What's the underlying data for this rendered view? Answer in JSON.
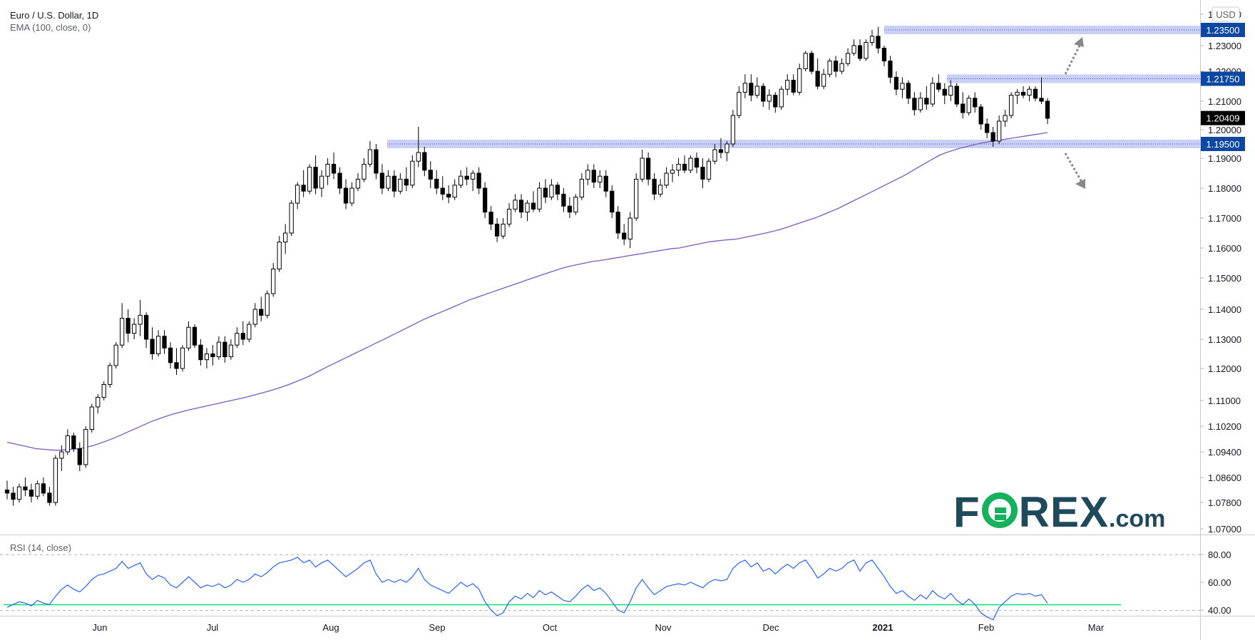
{
  "header": {
    "symbol_title": "Euro / U.S. Dollar, 1D",
    "indicator_label": "EMA (100, close, 0)",
    "currency_label": "USD"
  },
  "rsi_panel": {
    "label": "RSI (14, close)",
    "axis_labels": [
      "80.00",
      "60.00",
      "40.00"
    ]
  },
  "logo": {
    "text_left": "F",
    "text_o": "O",
    "text_right": "REX",
    "text_suffix": ".com"
  },
  "colors": {
    "candle_up_body": "#ffffff",
    "candle_down_body": "#000000",
    "ema_line": "#7e57c2",
    "zone_fill": "#9fa8f0",
    "rsi_line": "#2962ff",
    "rsi_green_line": "#00e676",
    "label_box": "#0d47a1",
    "price_box": "#000000",
    "logo_text": "#1f4a5c",
    "logo_green": "#16b15d"
  },
  "chart_data": {
    "type": "candlestick",
    "title": "Euro / U.S. Dollar, 1D",
    "ylim": [
      1.07,
      1.24
    ],
    "y_ticks": [
      "1.07000",
      "1.07800",
      "1.08600",
      "1.09400",
      "1.10200",
      "1.11000",
      "1.12000",
      "1.13000",
      "1.14000",
      "1.15000",
      "1.16000",
      "1.17000",
      "1.18000",
      "1.19000",
      "1.20000",
      "1.21000",
      "1.22000",
      "1.23000",
      "1.24000"
    ],
    "x_ticks": [
      "Jun",
      "Jul",
      "Aug",
      "Sep",
      "Oct",
      "Nov",
      "Dec",
      "2021",
      "Feb",
      "Mar"
    ],
    "current_price": "1.20409",
    "levels": [
      {
        "label": "1.23500",
        "value": 1.235
      },
      {
        "label": "1.21750",
        "value": 1.2175
      },
      {
        "label": "1.19500",
        "value": 1.195
      }
    ],
    "candles": [
      [
        1.082,
        1.085,
        1.079,
        1.081
      ],
      [
        1.081,
        1.083,
        1.077,
        1.079
      ],
      [
        1.079,
        1.084,
        1.078,
        1.083
      ],
      [
        1.083,
        1.086,
        1.08,
        1.082
      ],
      [
        1.082,
        1.084,
        1.078,
        1.08
      ],
      [
        1.08,
        1.085,
        1.079,
        1.084
      ],
      [
        1.084,
        1.086,
        1.08,
        1.081
      ],
      [
        1.081,
        1.083,
        1.077,
        1.078
      ],
      [
        1.078,
        1.093,
        1.077,
        1.092
      ],
      [
        1.092,
        1.096,
        1.088,
        1.094
      ],
      [
        1.094,
        1.101,
        1.093,
        1.099
      ],
      [
        1.099,
        1.1,
        1.094,
        1.095
      ],
      [
        1.095,
        1.097,
        1.088,
        1.09
      ],
      [
        1.09,
        1.102,
        1.089,
        1.101
      ],
      [
        1.101,
        1.109,
        1.1,
        1.108
      ],
      [
        1.108,
        1.112,
        1.106,
        1.111
      ],
      [
        1.111,
        1.116,
        1.11,
        1.115
      ],
      [
        1.115,
        1.122,
        1.114,
        1.121
      ],
      [
        1.121,
        1.129,
        1.12,
        1.128
      ],
      [
        1.128,
        1.142,
        1.127,
        1.137
      ],
      [
        1.137,
        1.14,
        1.129,
        1.132
      ],
      [
        1.132,
        1.137,
        1.13,
        1.135
      ],
      [
        1.135,
        1.143,
        1.131,
        1.138
      ],
      [
        1.138,
        1.139,
        1.127,
        1.13
      ],
      [
        1.13,
        1.134,
        1.123,
        1.125
      ],
      [
        1.125,
        1.133,
        1.124,
        1.131
      ],
      [
        1.131,
        1.133,
        1.125,
        1.127
      ],
      [
        1.127,
        1.129,
        1.12,
        1.122
      ],
      [
        1.122,
        1.127,
        1.118,
        1.12
      ],
      [
        1.12,
        1.128,
        1.119,
        1.127
      ],
      [
        1.127,
        1.136,
        1.126,
        1.134
      ],
      [
        1.134,
        1.135,
        1.127,
        1.128
      ],
      [
        1.128,
        1.13,
        1.121,
        1.123
      ],
      [
        1.123,
        1.127,
        1.12,
        1.125
      ],
      [
        1.125,
        1.128,
        1.121,
        1.124
      ],
      [
        1.124,
        1.131,
        1.123,
        1.129
      ],
      [
        1.129,
        1.131,
        1.122,
        1.124
      ],
      [
        1.124,
        1.13,
        1.123,
        1.128
      ],
      [
        1.128,
        1.134,
        1.127,
        1.132
      ],
      [
        1.132,
        1.136,
        1.128,
        1.13
      ],
      [
        1.13,
        1.136,
        1.129,
        1.135
      ],
      [
        1.135,
        1.142,
        1.134,
        1.14
      ],
      [
        1.14,
        1.144,
        1.136,
        1.138
      ],
      [
        1.138,
        1.146,
        1.137,
        1.145
      ],
      [
        1.145,
        1.155,
        1.144,
        1.153
      ],
      [
        1.153,
        1.164,
        1.152,
        1.162
      ],
      [
        1.162,
        1.168,
        1.158,
        1.165
      ],
      [
        1.165,
        1.176,
        1.164,
        1.175
      ],
      [
        1.175,
        1.182,
        1.173,
        1.181
      ],
      [
        1.181,
        1.186,
        1.177,
        1.179
      ],
      [
        1.179,
        1.188,
        1.178,
        1.187
      ],
      [
        1.187,
        1.191,
        1.178,
        1.18
      ],
      [
        1.18,
        1.186,
        1.177,
        1.184
      ],
      [
        1.184,
        1.19,
        1.181,
        1.188
      ],
      [
        1.188,
        1.192,
        1.183,
        1.185
      ],
      [
        1.185,
        1.187,
        1.178,
        1.18
      ],
      [
        1.18,
        1.183,
        1.173,
        1.175
      ],
      [
        1.175,
        1.182,
        1.174,
        1.18
      ],
      [
        1.18,
        1.185,
        1.179,
        1.183
      ],
      [
        1.183,
        1.19,
        1.182,
        1.188
      ],
      [
        1.188,
        1.196,
        1.187,
        1.193
      ],
      [
        1.193,
        1.195,
        1.183,
        1.185
      ],
      [
        1.185,
        1.188,
        1.178,
        1.18
      ],
      [
        1.18,
        1.186,
        1.179,
        1.184
      ],
      [
        1.184,
        1.186,
        1.177,
        1.179
      ],
      [
        1.179,
        1.185,
        1.178,
        1.183
      ],
      [
        1.183,
        1.187,
        1.179,
        1.181
      ],
      [
        1.181,
        1.191,
        1.18,
        1.189
      ],
      [
        1.189,
        1.201,
        1.187,
        1.192
      ],
      [
        1.192,
        1.194,
        1.184,
        1.186
      ],
      [
        1.186,
        1.189,
        1.18,
        1.183
      ],
      [
        1.183,
        1.186,
        1.178,
        1.18
      ],
      [
        1.18,
        1.184,
        1.176,
        1.178
      ],
      [
        1.178,
        1.181,
        1.175,
        1.177
      ],
      [
        1.177,
        1.183,
        1.176,
        1.181
      ],
      [
        1.181,
        1.186,
        1.18,
        1.184
      ],
      [
        1.184,
        1.187,
        1.181,
        1.183
      ],
      [
        1.183,
        1.186,
        1.179,
        1.185
      ],
      [
        1.185,
        1.187,
        1.178,
        1.18
      ],
      [
        1.18,
        1.182,
        1.17,
        1.172
      ],
      [
        1.172,
        1.174,
        1.166,
        1.168
      ],
      [
        1.168,
        1.17,
        1.162,
        1.164
      ],
      [
        1.164,
        1.17,
        1.163,
        1.168
      ],
      [
        1.168,
        1.175,
        1.167,
        1.173
      ],
      [
        1.173,
        1.178,
        1.172,
        1.176
      ],
      [
        1.176,
        1.178,
        1.17,
        1.172
      ],
      [
        1.172,
        1.176,
        1.169,
        1.175
      ],
      [
        1.175,
        1.179,
        1.172,
        1.173
      ],
      [
        1.173,
        1.182,
        1.172,
        1.18
      ],
      [
        1.18,
        1.183,
        1.175,
        1.177
      ],
      [
        1.177,
        1.183,
        1.176,
        1.181
      ],
      [
        1.181,
        1.182,
        1.176,
        1.178
      ],
      [
        1.178,
        1.18,
        1.172,
        1.174
      ],
      [
        1.174,
        1.177,
        1.17,
        1.172
      ],
      [
        1.172,
        1.178,
        1.171,
        1.177
      ],
      [
        1.177,
        1.185,
        1.176,
        1.183
      ],
      [
        1.183,
        1.188,
        1.181,
        1.186
      ],
      [
        1.186,
        1.188,
        1.18,
        1.182
      ],
      [
        1.182,
        1.186,
        1.18,
        1.184
      ],
      [
        1.184,
        1.186,
        1.177,
        1.179
      ],
      [
        1.179,
        1.181,
        1.17,
        1.172
      ],
      [
        1.172,
        1.174,
        1.163,
        1.165
      ],
      [
        1.165,
        1.168,
        1.161,
        1.163
      ],
      [
        1.163,
        1.172,
        1.16,
        1.17
      ],
      [
        1.17,
        1.185,
        1.169,
        1.183
      ],
      [
        1.183,
        1.193,
        1.182,
        1.19
      ],
      [
        1.19,
        1.192,
        1.181,
        1.183
      ],
      [
        1.183,
        1.185,
        1.176,
        1.178
      ],
      [
        1.178,
        1.183,
        1.177,
        1.181
      ],
      [
        1.181,
        1.187,
        1.18,
        1.185
      ],
      [
        1.185,
        1.188,
        1.182,
        1.186
      ],
      [
        1.186,
        1.19,
        1.184,
        1.188
      ],
      [
        1.188,
        1.191,
        1.185,
        1.186
      ],
      [
        1.186,
        1.191,
        1.185,
        1.19
      ],
      [
        1.19,
        1.192,
        1.185,
        1.187
      ],
      [
        1.187,
        1.19,
        1.18,
        1.183
      ],
      [
        1.183,
        1.19,
        1.182,
        1.189
      ],
      [
        1.189,
        1.195,
        1.188,
        1.193
      ],
      [
        1.193,
        1.197,
        1.19,
        1.192
      ],
      [
        1.192,
        1.196,
        1.189,
        1.195
      ],
      [
        1.195,
        1.207,
        1.194,
        1.205
      ],
      [
        1.205,
        1.215,
        1.204,
        1.213
      ],
      [
        1.213,
        1.219,
        1.211,
        1.216
      ],
      [
        1.216,
        1.219,
        1.21,
        1.212
      ],
      [
        1.212,
        1.218,
        1.211,
        1.215
      ],
      [
        1.215,
        1.216,
        1.208,
        1.21
      ],
      [
        1.21,
        1.214,
        1.207,
        1.212
      ],
      [
        1.212,
        1.213,
        1.206,
        1.208
      ],
      [
        1.208,
        1.215,
        1.207,
        1.214
      ],
      [
        1.214,
        1.219,
        1.212,
        1.217
      ],
      [
        1.217,
        1.219,
        1.212,
        1.213
      ],
      [
        1.213,
        1.223,
        1.212,
        1.221
      ],
      [
        1.221,
        1.228,
        1.22,
        1.227
      ],
      [
        1.227,
        1.228,
        1.219,
        1.22
      ],
      [
        1.22,
        1.225,
        1.214,
        1.215
      ],
      [
        1.215,
        1.221,
        1.214,
        1.219
      ],
      [
        1.219,
        1.225,
        1.218,
        1.224
      ],
      [
        1.224,
        1.226,
        1.218,
        1.22
      ],
      [
        1.22,
        1.225,
        1.219,
        1.223
      ],
      [
        1.223,
        1.229,
        1.222,
        1.227
      ],
      [
        1.227,
        1.232,
        1.226,
        1.23
      ],
      [
        1.23,
        1.232,
        1.224,
        1.225
      ],
      [
        1.225,
        1.232,
        1.224,
        1.231
      ],
      [
        1.231,
        1.235,
        1.23,
        1.233
      ],
      [
        1.233,
        1.236,
        1.227,
        1.229
      ],
      [
        1.229,
        1.23,
        1.222,
        1.224
      ],
      [
        1.224,
        1.226,
        1.216,
        1.218
      ],
      [
        1.218,
        1.22,
        1.212,
        1.214
      ],
      [
        1.214,
        1.218,
        1.211,
        1.216
      ],
      [
        1.216,
        1.217,
        1.209,
        1.211
      ],
      [
        1.211,
        1.213,
        1.205,
        1.207
      ],
      [
        1.207,
        1.213,
        1.206,
        1.211
      ],
      [
        1.211,
        1.215,
        1.207,
        1.209
      ],
      [
        1.209,
        1.218,
        1.208,
        1.216
      ],
      [
        1.216,
        1.219,
        1.213,
        1.214
      ],
      [
        1.214,
        1.216,
        1.209,
        1.212
      ],
      [
        1.212,
        1.217,
        1.21,
        1.215
      ],
      [
        1.215,
        1.216,
        1.208,
        1.209
      ],
      [
        1.209,
        1.213,
        1.204,
        1.206
      ],
      [
        1.206,
        1.212,
        1.205,
        1.211
      ],
      [
        1.211,
        1.213,
        1.206,
        1.208
      ],
      [
        1.208,
        1.209,
        1.2,
        1.202
      ],
      [
        1.202,
        1.204,
        1.197,
        1.199
      ],
      [
        1.199,
        1.201,
        1.194,
        1.196
      ],
      [
        1.196,
        1.205,
        1.195,
        1.203
      ],
      [
        1.203,
        1.207,
        1.201,
        1.205
      ],
      [
        1.205,
        1.213,
        1.204,
        1.212
      ],
      [
        1.212,
        1.214,
        1.209,
        1.213
      ],
      [
        1.213,
        1.215,
        1.211,
        1.212
      ],
      [
        1.212,
        1.215,
        1.21,
        1.214
      ],
      [
        1.214,
        1.215,
        1.21,
        1.211
      ],
      [
        1.211,
        1.218,
        1.209,
        1.21
      ],
      [
        1.21,
        1.211,
        1.202,
        1.204
      ]
    ],
    "ema": [
      1.097,
      1.0965,
      1.096,
      1.0955,
      1.095,
      1.0948,
      1.0946,
      1.0945,
      1.0946,
      1.0948,
      1.095,
      1.0955,
      1.096,
      1.0968,
      1.0976,
      1.0985,
      1.0995,
      1.1005,
      1.1015,
      1.1025,
      1.1035,
      1.1043,
      1.1051,
      1.1058,
      1.1064,
      1.107,
      1.1075,
      1.108,
      1.1085,
      1.109,
      1.1095,
      1.11,
      1.1105,
      1.111,
      1.1116,
      1.1122,
      1.1128,
      1.1135,
      1.1142,
      1.115,
      1.1159,
      1.1168,
      1.1178,
      1.119,
      1.1202,
      1.1214,
      1.1226,
      1.1238,
      1.125,
      1.1262,
      1.1274,
      1.1286,
      1.1298,
      1.131,
      1.1322,
      1.1334,
      1.1346,
      1.1358,
      1.137,
      1.138,
      1.139,
      1.14,
      1.141,
      1.142,
      1.143,
      1.1438,
      1.1446,
      1.1454,
      1.1462,
      1.147,
      1.1478,
      1.1486,
      1.1494,
      1.1502,
      1.151,
      1.1518,
      1.1526,
      1.1534,
      1.154,
      1.1545,
      1.155,
      1.1555,
      1.1558,
      1.1562,
      1.1566,
      1.157,
      1.1574,
      1.1578,
      1.1582,
      1.1586,
      1.159,
      1.1594,
      1.1598,
      1.16,
      1.1605,
      1.161,
      1.1615,
      1.162,
      1.1623,
      1.1626,
      1.1628,
      1.163,
      1.1635,
      1.164,
      1.1645,
      1.165,
      1.1656,
      1.1662,
      1.167,
      1.1678,
      1.1686,
      1.1694,
      1.1702,
      1.1712,
      1.1722,
      1.1732,
      1.1744,
      1.1756,
      1.1768,
      1.178,
      1.1792,
      1.1804,
      1.1816,
      1.1828,
      1.184,
      1.1854,
      1.1868,
      1.1882,
      1.1896,
      1.191,
      1.192,
      1.1928,
      1.1936,
      1.1942,
      1.1948,
      1.1954,
      1.1958,
      1.1962,
      1.1966,
      1.197,
      1.1974,
      1.1978,
      1.1982,
      1.1986,
      1.199
    ],
    "rsi": [
      42,
      44,
      46,
      45,
      43,
      47,
      45,
      44,
      50,
      55,
      58,
      55,
      53,
      57,
      62,
      65,
      66,
      68,
      70,
      75,
      70,
      72,
      74,
      66,
      62,
      65,
      63,
      58,
      56,
      60,
      64,
      60,
      56,
      58,
      57,
      59,
      56,
      58,
      62,
      60,
      62,
      66,
      64,
      67,
      71,
      74,
      75,
      76,
      78,
      74,
      76,
      71,
      74,
      76,
      72,
      68,
      64,
      67,
      70,
      74,
      76,
      66,
      60,
      62,
      60,
      62,
      60,
      64,
      70,
      62,
      58,
      56,
      54,
      52,
      56,
      60,
      57,
      59,
      55,
      46,
      40,
      36,
      38,
      46,
      50,
      48,
      52,
      49,
      54,
      51,
      53,
      50,
      47,
      46,
      50,
      55,
      58,
      54,
      56,
      52,
      46,
      40,
      38,
      46,
      56,
      62,
      56,
      51,
      54,
      57,
      58,
      59,
      58,
      60,
      58,
      56,
      60,
      62,
      61,
      62,
      70,
      74,
      76,
      71,
      74,
      68,
      70,
      66,
      70,
      73,
      70,
      74,
      76,
      70,
      63,
      66,
      70,
      68,
      70,
      74,
      76,
      68,
      74,
      76,
      70,
      64,
      57,
      52,
      54,
      50,
      47,
      51,
      48,
      54,
      50,
      48,
      52,
      47,
      44,
      48,
      44,
      38,
      35,
      33,
      42,
      46,
      50,
      52,
      51,
      52,
      50,
      51,
      45
    ]
  }
}
